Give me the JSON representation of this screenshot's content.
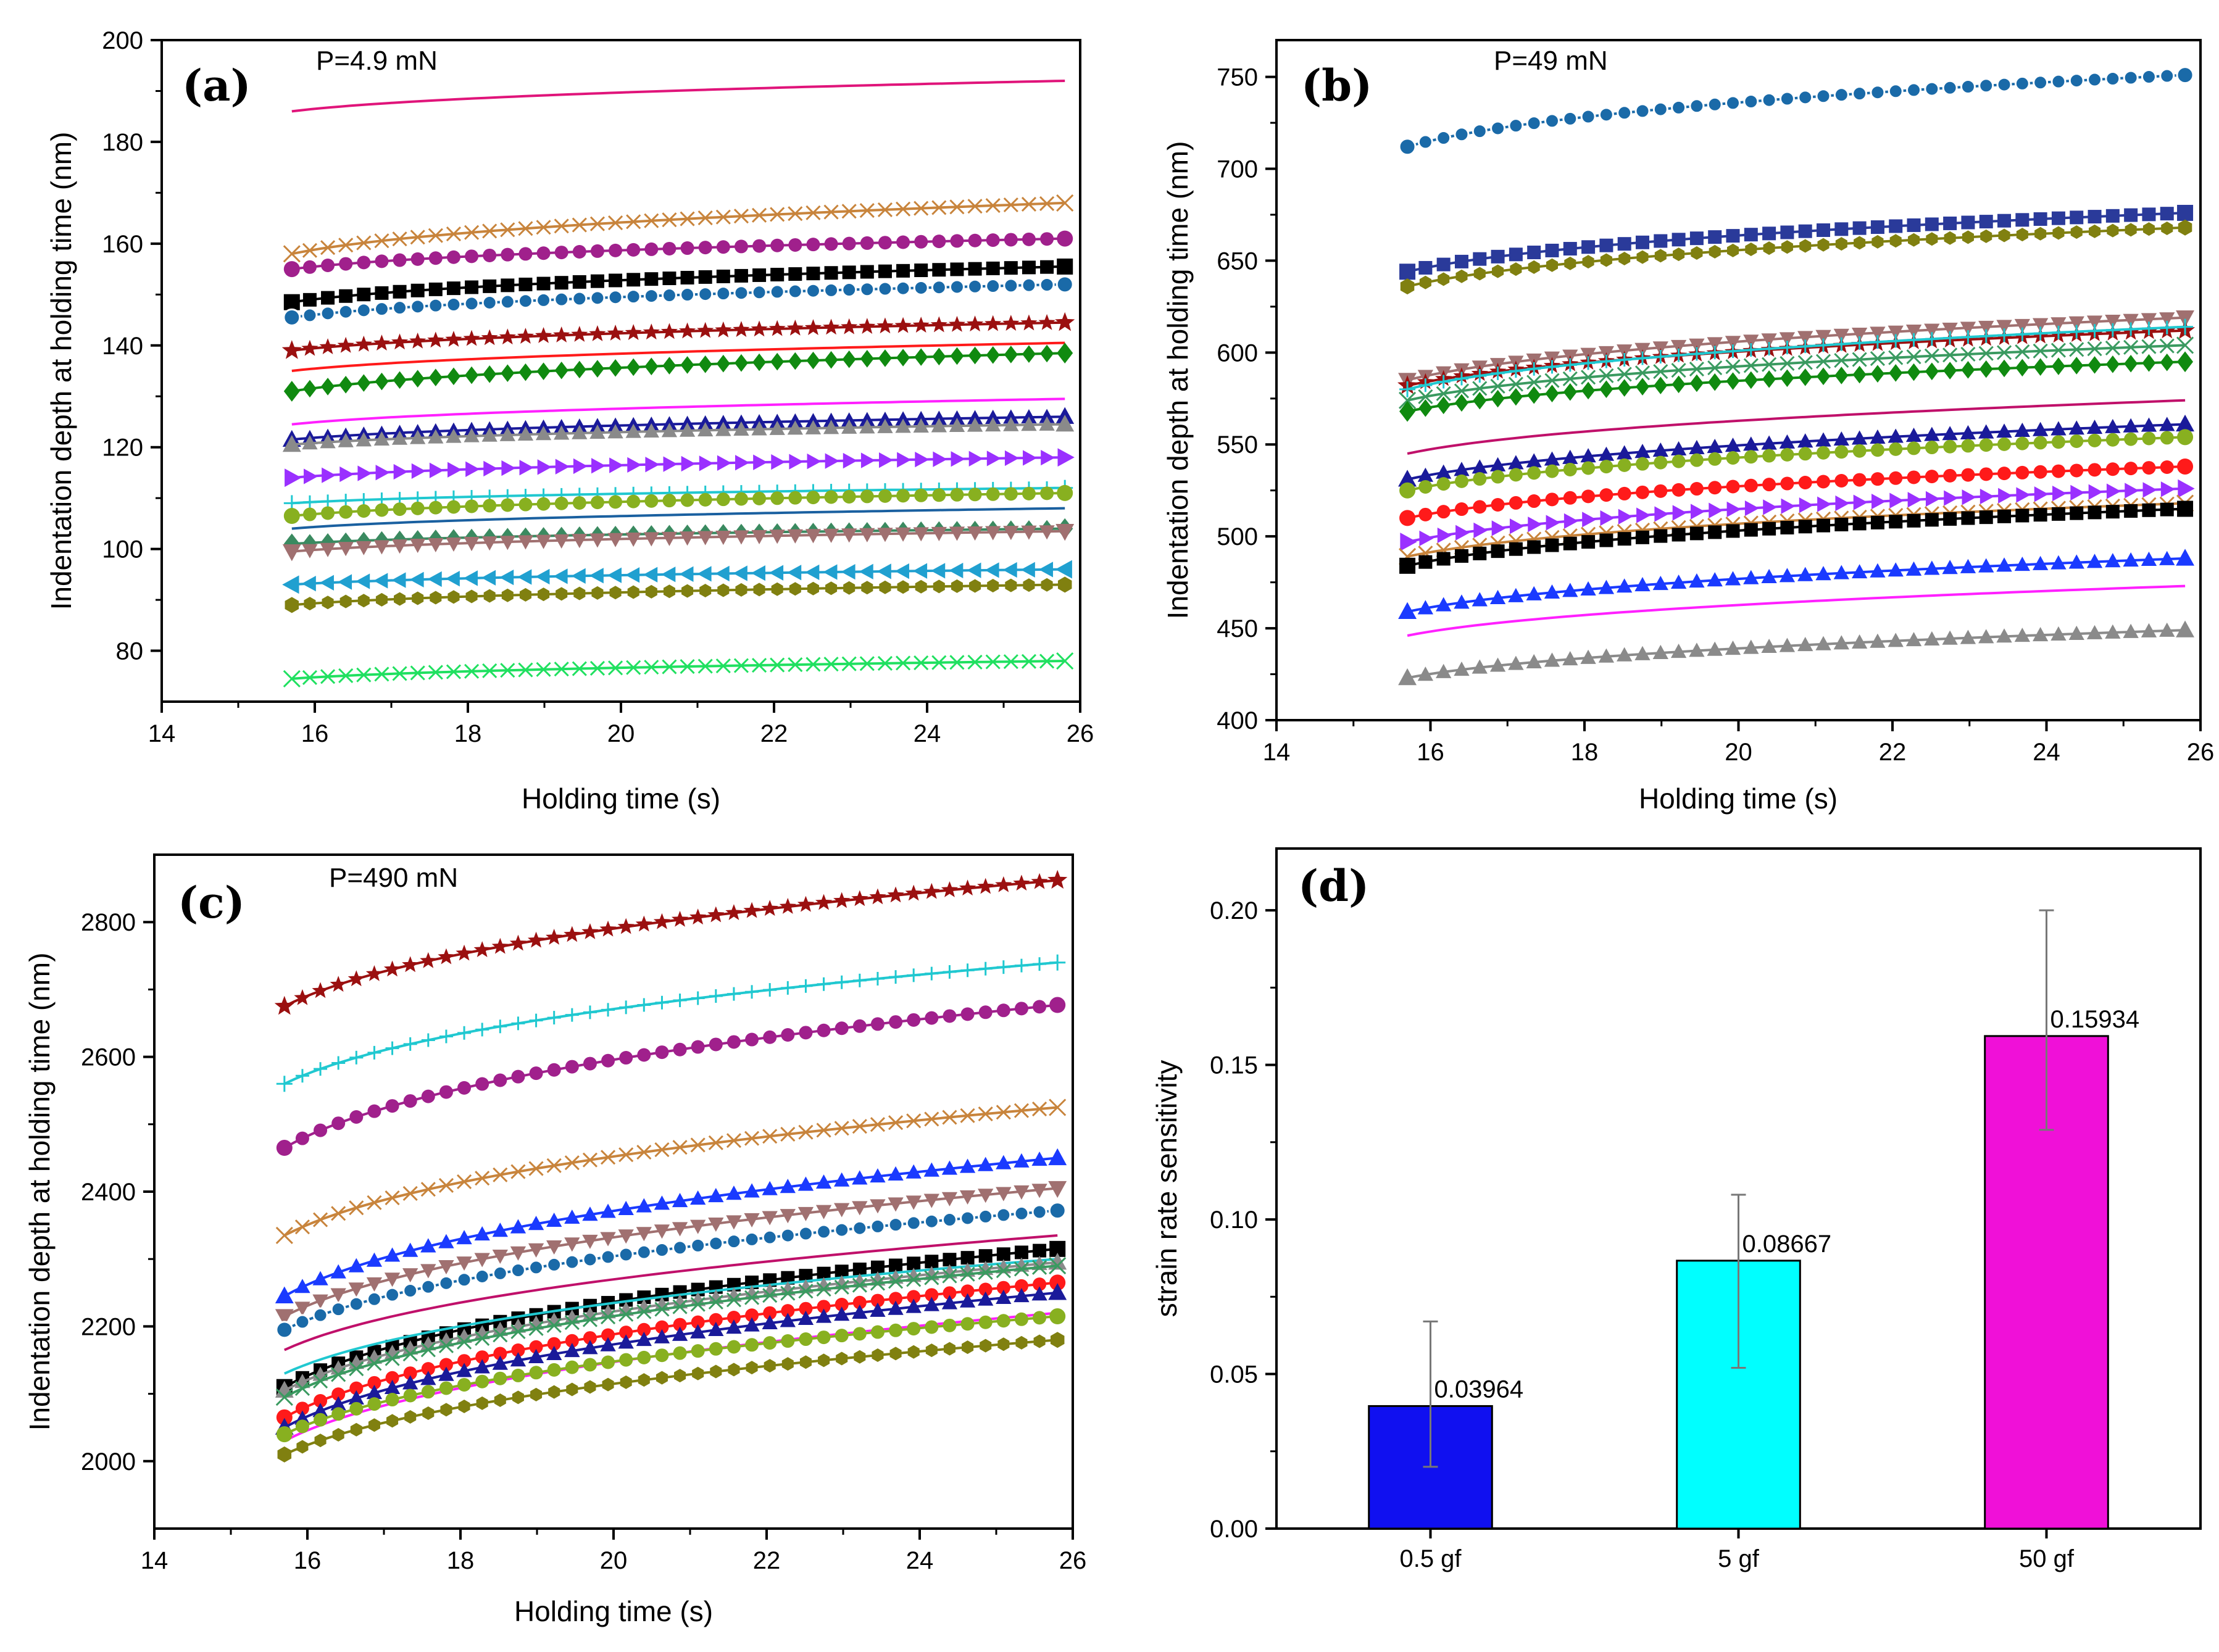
{
  "figure": {
    "x_axis_label": "Holding time (s)",
    "y_axis_label": "Indentation depth at holding time (nm)"
  },
  "chart_data": [
    {
      "id": "a",
      "type": "line",
      "panel_label": "(a)",
      "annotation": "P=4.9 mN",
      "xlabel": "Holding time (s)",
      "ylabel": "Indentation depth at holding time (nm)",
      "xlim": [
        14,
        26
      ],
      "ylim": [
        70,
        200
      ],
      "xticks": [
        14,
        16,
        18,
        20,
        22,
        24,
        26
      ],
      "yticks": [
        80,
        100,
        120,
        140,
        160,
        180,
        200
      ],
      "x_range": [
        15.7,
        25.8
      ],
      "series": [
        {
          "name": "s1",
          "start": 186,
          "end": 192,
          "color": "#e0147a",
          "marker": "none"
        },
        {
          "name": "s2",
          "start": 158,
          "end": 168,
          "color": "#c8843c",
          "marker": "x"
        },
        {
          "name": "s3",
          "start": 155,
          "end": 161,
          "color": "#a0208c",
          "marker": "circle"
        },
        {
          "name": "s4",
          "start": 148.5,
          "end": 155.5,
          "color": "#000000",
          "marker": "square"
        },
        {
          "name": "s5",
          "start": 145.5,
          "end": 152,
          "color": "#1a6aa8",
          "marker": "circle-open"
        },
        {
          "name": "s6",
          "start": 139,
          "end": 144.5,
          "color": "#9b1010",
          "marker": "star"
        },
        {
          "name": "s7",
          "start": 135,
          "end": 140.5,
          "color": "#ff1a1a",
          "marker": "none"
        },
        {
          "name": "s8",
          "start": 131,
          "end": 138.5,
          "color": "#108a10",
          "marker": "diamond"
        },
        {
          "name": "s9",
          "start": 124.5,
          "end": 129.5,
          "color": "#ff20ff",
          "marker": "none"
        },
        {
          "name": "s10",
          "start": 121.5,
          "end": 126,
          "color": "#1a1a9a",
          "marker": "triangle-up"
        },
        {
          "name": "s11",
          "start": 120.5,
          "end": 124.5,
          "color": "#8a8a8a",
          "marker": "triangle-up"
        },
        {
          "name": "s12",
          "start": 114,
          "end": 118,
          "color": "#9a30ff",
          "marker": "triangle-right"
        },
        {
          "name": "s13",
          "start": 109,
          "end": 112,
          "color": "#20c8d0",
          "marker": "plus"
        },
        {
          "name": "s14",
          "start": 106.5,
          "end": 111,
          "color": "#88b020",
          "marker": "circle"
        },
        {
          "name": "s15",
          "start": 104,
          "end": 108,
          "color": "#1a60a0",
          "marker": "none"
        },
        {
          "name": "s16",
          "start": 101,
          "end": 104,
          "color": "#3a8a60",
          "marker": "diamond"
        },
        {
          "name": "s17",
          "start": 99.5,
          "end": 103.5,
          "color": "#a07070",
          "marker": "triangle-down"
        },
        {
          "name": "s18",
          "start": 93,
          "end": 96,
          "color": "#20a0d0",
          "marker": "triangle-left"
        },
        {
          "name": "s19",
          "start": 89,
          "end": 93,
          "color": "#808010",
          "marker": "hexagon"
        },
        {
          "name": "s20",
          "start": 74.5,
          "end": 78,
          "color": "#20e060",
          "marker": "x"
        }
      ]
    },
    {
      "id": "b",
      "type": "line",
      "panel_label": "(b)",
      "annotation": "P=49 mN",
      "xlabel": "Holding time (s)",
      "ylabel": "Indentation depth at holding time (nm)",
      "xlim": [
        14,
        26
      ],
      "ylim": [
        400,
        770
      ],
      "xticks": [
        14,
        16,
        18,
        20,
        22,
        24,
        26
      ],
      "yticks": [
        400,
        450,
        500,
        550,
        600,
        650,
        700,
        750
      ],
      "x_range": [
        15.7,
        25.8
      ],
      "series": [
        {
          "name": "s1",
          "start": 712,
          "end": 751,
          "color": "#1a6aa8",
          "marker": "circle-open"
        },
        {
          "name": "s2",
          "start": 644,
          "end": 676,
          "color": "#2a3a9a",
          "marker": "square"
        },
        {
          "name": "s3",
          "start": 636,
          "end": 668,
          "color": "#808010",
          "marker": "hexagon"
        },
        {
          "name": "s4",
          "start": 585,
          "end": 619,
          "color": "#a07070",
          "marker": "triangle-down"
        },
        {
          "name": "s5",
          "start": 582,
          "end": 612,
          "color": "#9b1010",
          "marker": "star"
        },
        {
          "name": "s6",
          "start": 580,
          "end": 614,
          "color": "#20c8d0",
          "marker": "plus"
        },
        {
          "name": "s7",
          "start": 574,
          "end": 604,
          "color": "#3a9a60",
          "marker": "x"
        },
        {
          "name": "s8",
          "start": 568,
          "end": 595,
          "color": "#108a10",
          "marker": "diamond"
        },
        {
          "name": "s9",
          "start": 545,
          "end": 574,
          "color": "#c0106a",
          "marker": "none"
        },
        {
          "name": "s10",
          "start": 531,
          "end": 561,
          "color": "#1a1a9a",
          "marker": "triangle-up"
        },
        {
          "name": "s11",
          "start": 525,
          "end": 554,
          "color": "#88b020",
          "marker": "circle"
        },
        {
          "name": "s12",
          "start": 510,
          "end": 538,
          "color": "#ff1a1a",
          "marker": "circle"
        },
        {
          "name": "s13",
          "start": 497,
          "end": 526,
          "color": "#9a30ff",
          "marker": "triangle-right"
        },
        {
          "name": "s14",
          "start": 489,
          "end": 518,
          "color": "#c8843c",
          "marker": "x"
        },
        {
          "name": "s15",
          "start": 484,
          "end": 515,
          "color": "#000000",
          "marker": "square"
        },
        {
          "name": "s16",
          "start": 459,
          "end": 488,
          "color": "#1a3aff",
          "marker": "triangle-up"
        },
        {
          "name": "s17",
          "start": 446,
          "end": 473,
          "color": "#ff20ff",
          "marker": "none"
        },
        {
          "name": "s18",
          "start": 423,
          "end": 449,
          "color": "#8a8a8a",
          "marker": "triangle-up"
        }
      ]
    },
    {
      "id": "c",
      "type": "line",
      "panel_label": "(c)",
      "annotation": "P=490 mN",
      "xlabel": "Holding time (s)",
      "ylabel": "Indentation depth at holding time (nm)",
      "xlim": [
        14,
        26
      ],
      "ylim": [
        1900,
        2900
      ],
      "xticks": [
        14,
        16,
        18,
        20,
        22,
        24,
        26
      ],
      "yticks": [
        2000,
        2200,
        2400,
        2600,
        2800
      ],
      "x_range": [
        15.7,
        25.8
      ],
      "series": [
        {
          "name": "s1",
          "start": 2675,
          "end": 2862,
          "color": "#9b1010",
          "marker": "star"
        },
        {
          "name": "s2",
          "start": 2560,
          "end": 2740,
          "color": "#20c8d0",
          "marker": "plus"
        },
        {
          "name": "s3",
          "start": 2465,
          "end": 2677,
          "color": "#a0208c",
          "marker": "circle"
        },
        {
          "name": "s4",
          "start": 2335,
          "end": 2525,
          "color": "#c8843c",
          "marker": "x"
        },
        {
          "name": "s5",
          "start": 2245,
          "end": 2450,
          "color": "#1a3aff",
          "marker": "triangle-up"
        },
        {
          "name": "s6",
          "start": 2215,
          "end": 2405,
          "color": "#a07070",
          "marker": "triangle-down"
        },
        {
          "name": "s7",
          "start": 2195,
          "end": 2372,
          "color": "#1a6aa8",
          "marker": "circle-open"
        },
        {
          "name": "s8",
          "start": 2165,
          "end": 2335,
          "color": "#c0106a",
          "marker": "none"
        },
        {
          "name": "s9",
          "start": 2110,
          "end": 2315,
          "color": "#000000",
          "marker": "square"
        },
        {
          "name": "s10",
          "start": 2130,
          "end": 2300,
          "color": "#20c8d0",
          "marker": "none"
        },
        {
          "name": "s11",
          "start": 2105,
          "end": 2295,
          "color": "#8a8a8a",
          "marker": "triangle-up"
        },
        {
          "name": "s12",
          "start": 2095,
          "end": 2290,
          "color": "#3a9a60",
          "marker": "x"
        },
        {
          "name": "s13",
          "start": 2065,
          "end": 2265,
          "color": "#ff1a1a",
          "marker": "circle"
        },
        {
          "name": "s14",
          "start": 2050,
          "end": 2250,
          "color": "#1a1a9a",
          "marker": "triangle-up"
        },
        {
          "name": "s15",
          "start": 2030,
          "end": 2220,
          "color": "#ff20ff",
          "marker": "none"
        },
        {
          "name": "s16",
          "start": 2040,
          "end": 2215,
          "color": "#88b020",
          "marker": "circle"
        },
        {
          "name": "s17",
          "start": 2010,
          "end": 2180,
          "color": "#808010",
          "marker": "hexagon"
        }
      ]
    },
    {
      "id": "d",
      "type": "bar",
      "panel_label": "(d)",
      "xlabel": "",
      "ylabel": "strain rate sensitivity",
      "ylim": [
        0,
        0.22
      ],
      "yticks": [
        0.0,
        0.05,
        0.1,
        0.15,
        0.2
      ],
      "ytick_labels": [
        "0.00",
        "0.05",
        "0.10",
        "0.15",
        "0.20"
      ],
      "categories": [
        "0.5 gf",
        "5 gf",
        "50 gf"
      ],
      "values": [
        0.03964,
        0.08667,
        0.15934
      ],
      "value_labels": [
        "0.03964",
        "0.08667",
        "0.15934"
      ],
      "error_low": [
        0.02,
        0.052,
        0.129
      ],
      "error_high": [
        0.067,
        0.108,
        0.2
      ],
      "colors": [
        "#1010f0",
        "#00ffff",
        "#f010d8"
      ]
    }
  ]
}
